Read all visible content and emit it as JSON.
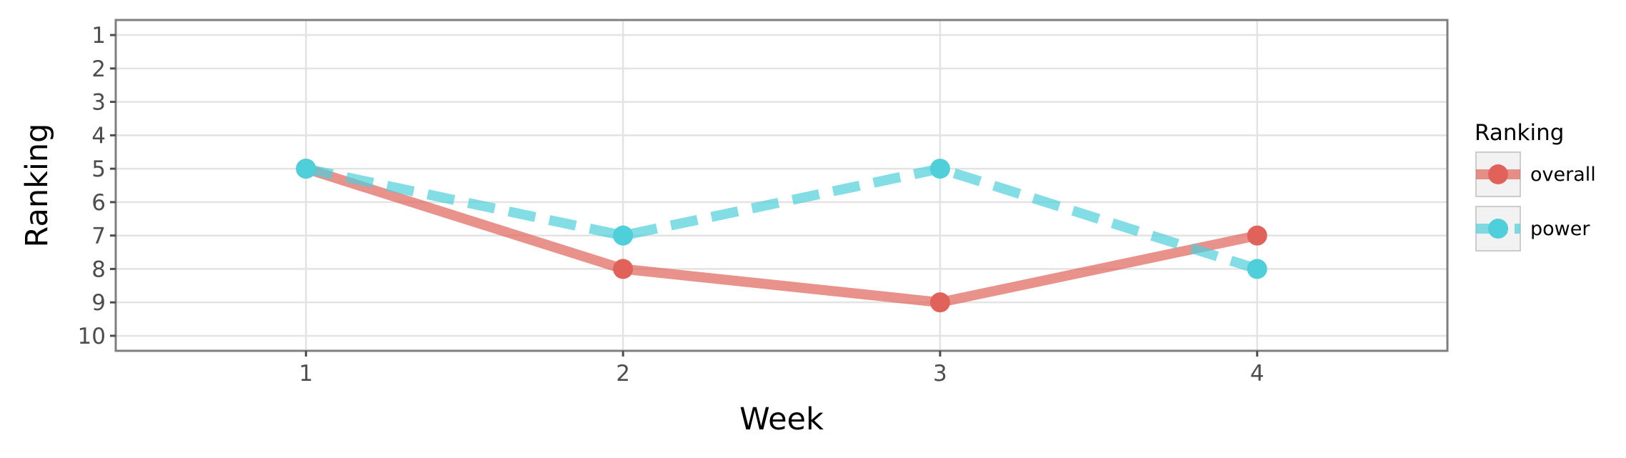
{
  "chart_data": {
    "type": "line",
    "xlabel": "Week",
    "ylabel": "Ranking",
    "x": [
      1,
      2,
      3,
      4
    ],
    "x_ticks": [
      "1",
      "2",
      "3",
      "4"
    ],
    "xlim": [
      0.4,
      4.6
    ],
    "ylim": [
      10.45,
      0.55
    ],
    "y_reversed": true,
    "y_ticks": [
      "1",
      "2",
      "3",
      "4",
      "5",
      "6",
      "7",
      "8",
      "9",
      "10"
    ],
    "grid": true,
    "legend": {
      "title": "Ranking",
      "position": "right"
    },
    "series": [
      {
        "name": "overall",
        "values": [
          5,
          8,
          9,
          7
        ],
        "color": "#E0625A",
        "line_style": "solid"
      },
      {
        "name": "power",
        "values": [
          5,
          7,
          5,
          8
        ],
        "color": "#4FCFDA",
        "line_style": "dashed"
      }
    ]
  }
}
